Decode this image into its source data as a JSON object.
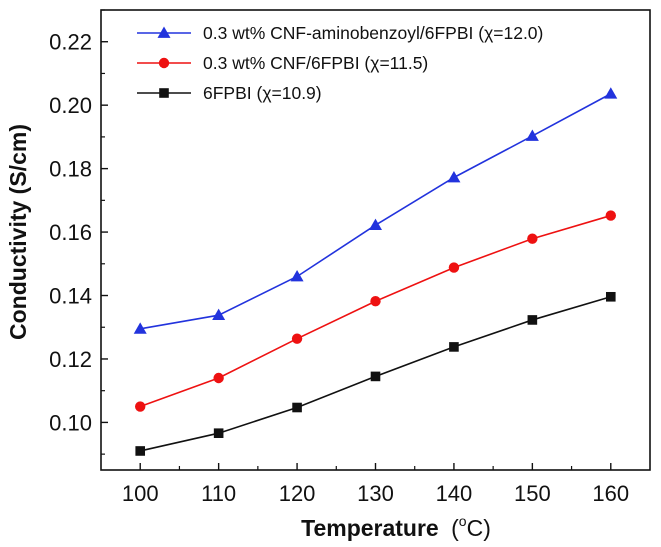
{
  "chart_data": {
    "type": "line",
    "title": "",
    "xlabel": "Temperature",
    "xlabel_unit": "(oC)",
    "ylabel": "Conductivity (S/cm)",
    "x": [
      100,
      110,
      120,
      130,
      140,
      150,
      160
    ],
    "x_ticks": [
      "100",
      "110",
      "120",
      "130",
      "140",
      "150",
      "160"
    ],
    "y_ticks": [
      "0.10",
      "0.12",
      "0.14",
      "0.16",
      "0.18",
      "0.20",
      "0.22"
    ],
    "xlim": [
      95,
      165
    ],
    "ylim": [
      0.085,
      0.23
    ],
    "grid": false,
    "legend_position": "top-left",
    "series": [
      {
        "name": "0.3 wt% CNF-aminobenzoyl/6FPBI (χ=12.0)",
        "color": "#2233dd",
        "marker": "triangle",
        "values": [
          0.1295,
          0.1338,
          0.146,
          0.1622,
          0.1772,
          0.1903,
          0.2036
        ]
      },
      {
        "name": "0.3 wt% CNF/6FPBI (χ=11.5)",
        "color": "#ee1111",
        "marker": "circle",
        "values": [
          0.105,
          0.114,
          0.1264,
          0.1382,
          0.1488,
          0.1579,
          0.1652
        ]
      },
      {
        "name": "6FPBI (χ=10.9)",
        "color": "#111111",
        "marker": "square",
        "values": [
          0.091,
          0.0966,
          0.1047,
          0.1145,
          0.1238,
          0.1323,
          0.1396
        ]
      }
    ]
  }
}
